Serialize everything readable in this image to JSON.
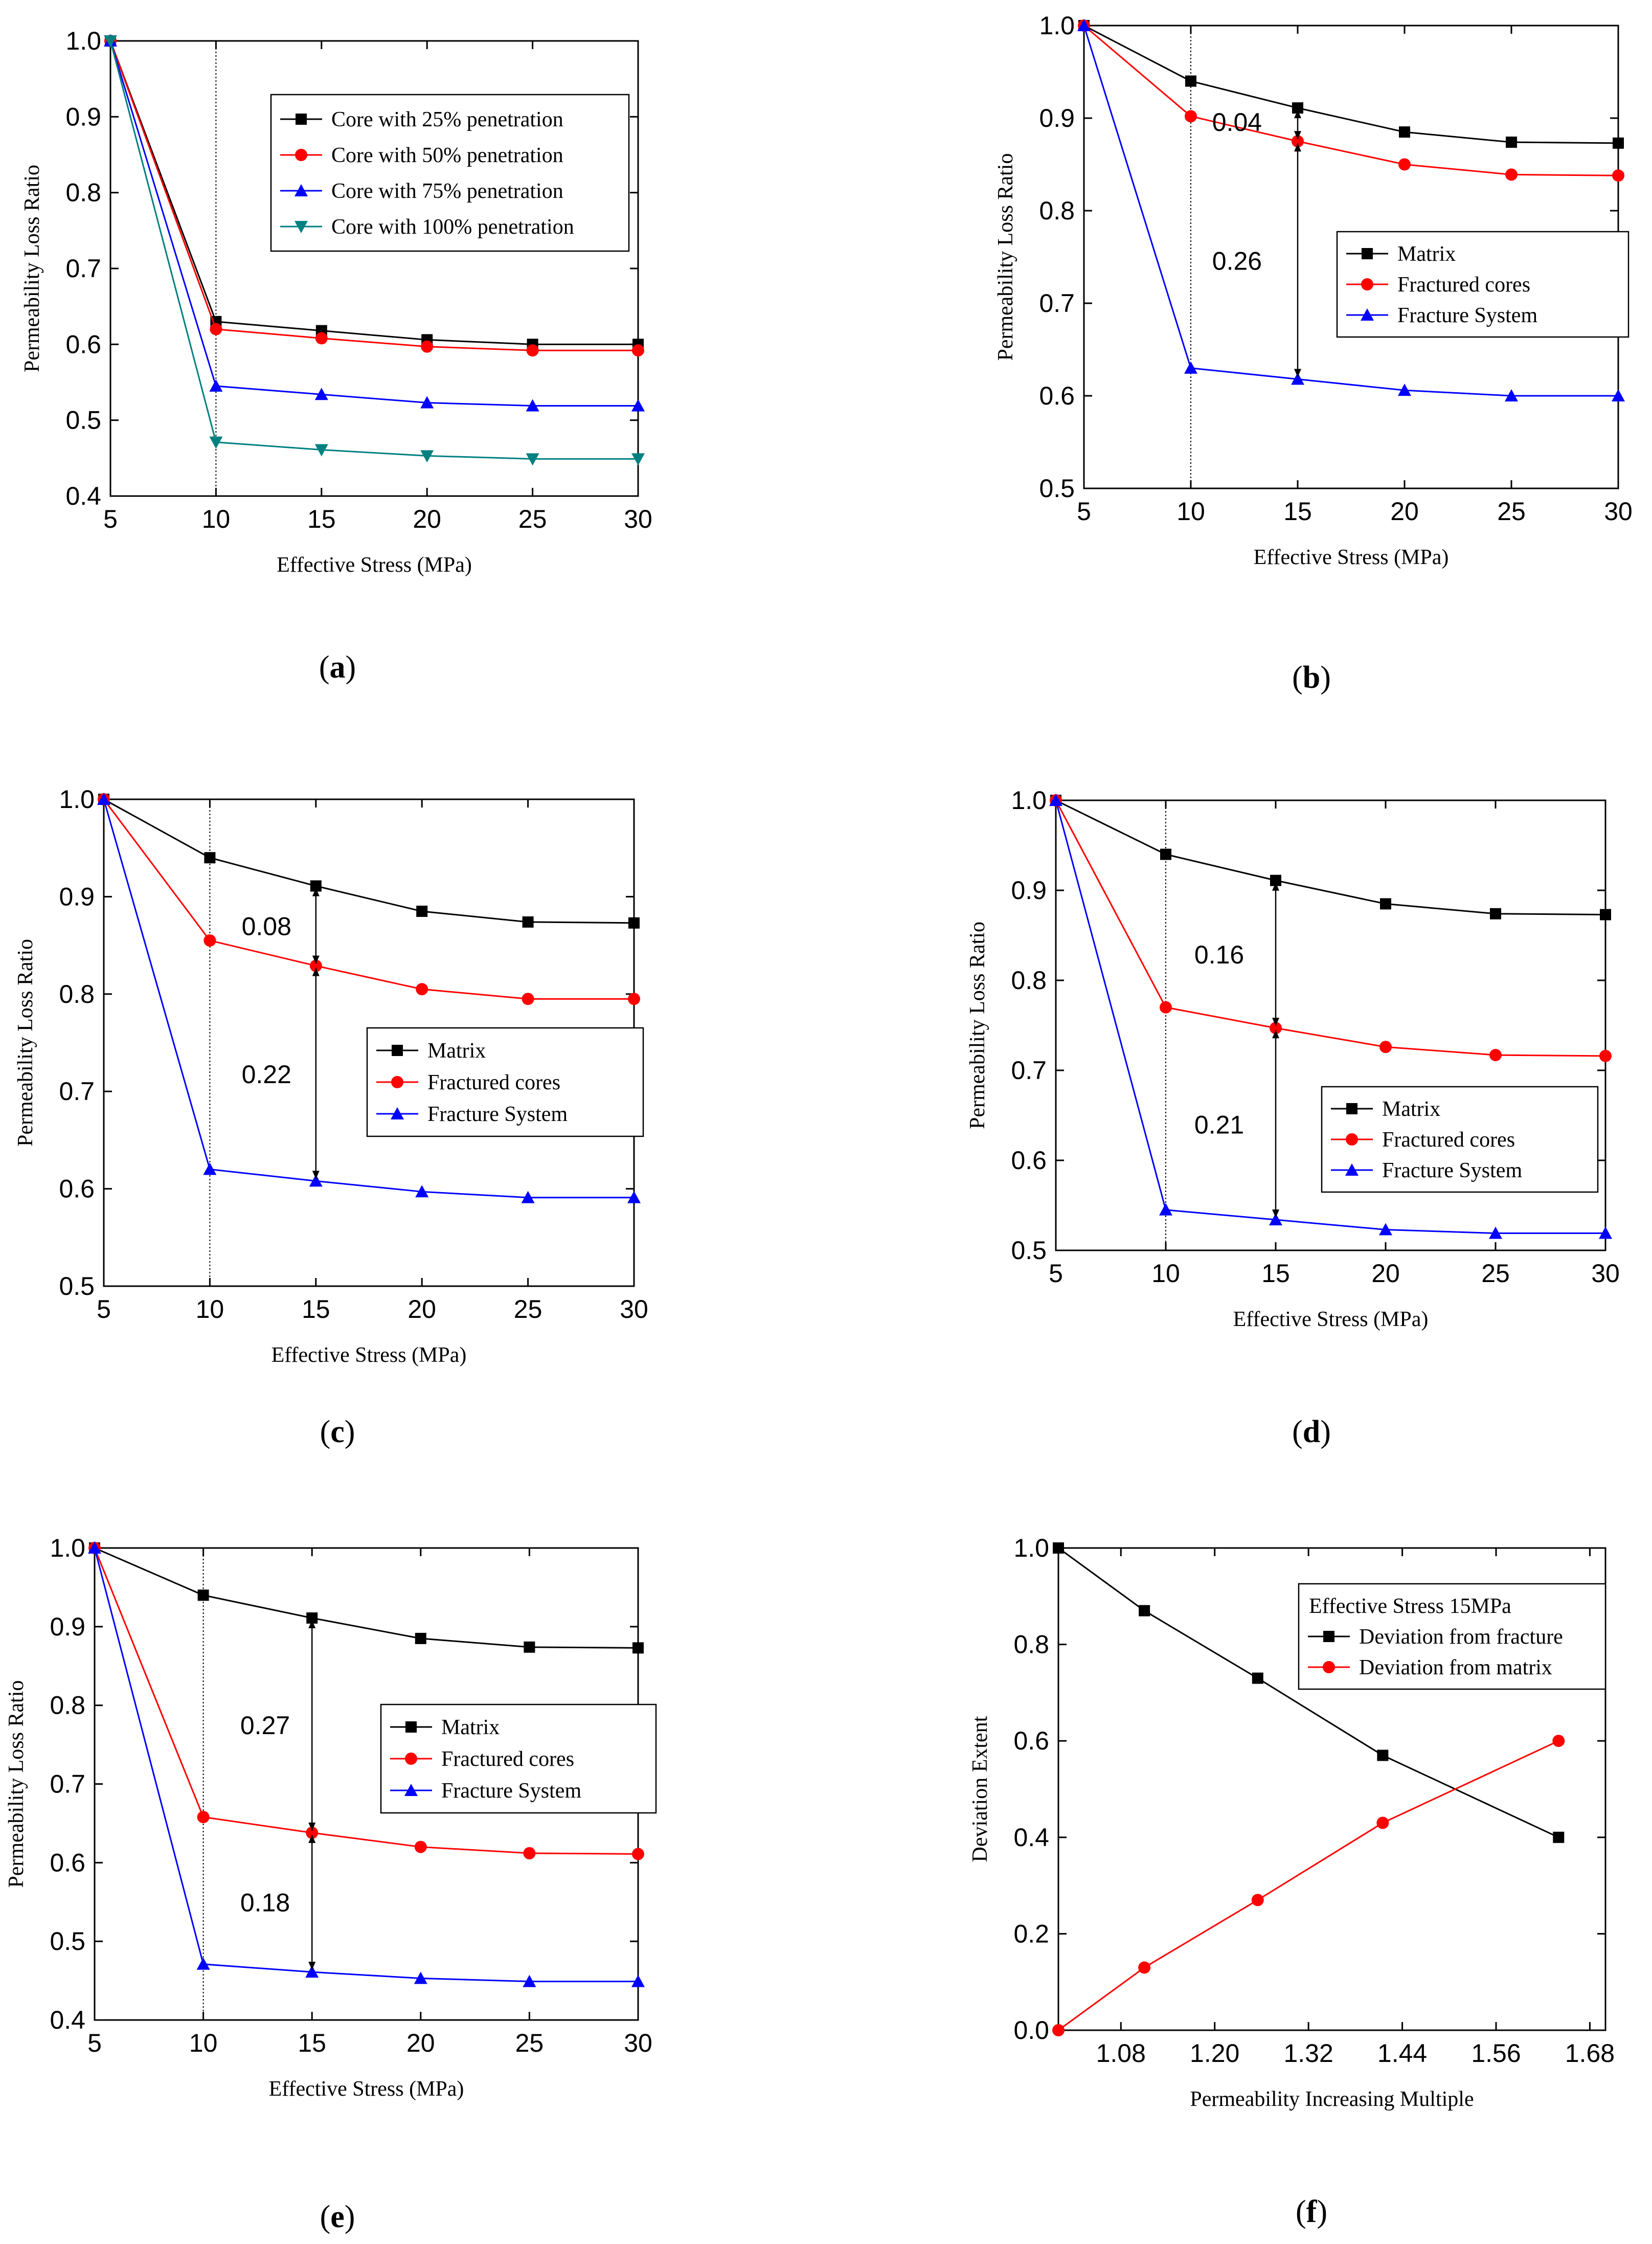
{
  "figure": {
    "panel_labels": [
      "a",
      "b",
      "c",
      "d",
      "e",
      "f"
    ]
  },
  "colors": {
    "black": "#000000",
    "red": "#ff0000",
    "blue": "#0000ff",
    "teal": "#008080"
  },
  "chart_data": [
    {
      "id": "a",
      "type": "line",
      "title": "",
      "xlabel": "Effective Stress (MPa)",
      "ylabel": "Permeability Loss Ratio",
      "x": [
        5,
        10,
        15,
        20,
        25,
        30
      ],
      "xlim": [
        5,
        30
      ],
      "ylim": [
        0.4,
        1.0
      ],
      "xticks": [
        "5",
        "10",
        "15",
        "20",
        "25",
        "30"
      ],
      "yticks": [
        "0.4",
        "0.5",
        "0.6",
        "0.7",
        "0.8",
        "0.9",
        "1.0"
      ],
      "vline": 10,
      "legend_position": "top-right",
      "series": [
        {
          "name": "Core with 25% penetration",
          "values": [
            1.0,
            0.63,
            0.618,
            0.606,
            0.6,
            0.6
          ],
          "color": "#000000",
          "marker": "square"
        },
        {
          "name": "Core with 50% penetration",
          "values": [
            1.0,
            0.62,
            0.608,
            0.597,
            0.592,
            0.592
          ],
          "color": "#ff0000",
          "marker": "circle"
        },
        {
          "name": "Core with 75% penetration",
          "values": [
            1.0,
            0.545,
            0.534,
            0.523,
            0.519,
            0.519
          ],
          "color": "#0000ff",
          "marker": "triangle-up"
        },
        {
          "name": "Core with 100% penetration",
          "values": [
            1.0,
            0.471,
            0.461,
            0.453,
            0.449,
            0.449
          ],
          "color": "#008080",
          "marker": "triangle-down"
        }
      ],
      "annotations": []
    },
    {
      "id": "b",
      "type": "line",
      "title": "",
      "xlabel": "Effective Stress (MPa)",
      "ylabel": "Permeability Loss Ratio",
      "x": [
        5,
        10,
        15,
        20,
        25,
        30
      ],
      "xlim": [
        5,
        30
      ],
      "ylim": [
        0.5,
        1.0
      ],
      "xticks": [
        "5",
        "10",
        "15",
        "20",
        "25",
        "30"
      ],
      "yticks": [
        "0.5",
        "0.6",
        "0.7",
        "0.8",
        "0.9",
        "1.0"
      ],
      "vline": 10,
      "legend_position": "center-right",
      "series": [
        {
          "name": "Matrix",
          "values": [
            1.0,
            0.94,
            0.911,
            0.885,
            0.874,
            0.873
          ],
          "color": "#000000",
          "marker": "square"
        },
        {
          "name": "Fractured cores",
          "values": [
            1.0,
            0.902,
            0.875,
            0.85,
            0.839,
            0.838
          ],
          "color": "#ff0000",
          "marker": "circle"
        },
        {
          "name": "Fracture System",
          "values": [
            1.0,
            0.63,
            0.618,
            0.606,
            0.6,
            0.6
          ],
          "color": "#0000ff",
          "marker": "triangle-up"
        }
      ],
      "annotations": [
        {
          "label": "0.04",
          "at_x": 15,
          "from": 0.911,
          "to": 0.875,
          "label_x": 11.0,
          "label_y": 0.896
        },
        {
          "label": "0.26",
          "at_x": 15,
          "from": 0.875,
          "to": 0.618,
          "label_x": 11.0,
          "label_y": 0.746
        }
      ]
    },
    {
      "id": "c",
      "type": "line",
      "title": "",
      "xlabel": "Effective Stress (MPa)",
      "ylabel": "Permeability Loss Ratio",
      "x": [
        5,
        10,
        15,
        20,
        25,
        30
      ],
      "xlim": [
        5,
        30
      ],
      "ylim": [
        0.5,
        1.0
      ],
      "xticks": [
        "5",
        "10",
        "15",
        "20",
        "25",
        "30"
      ],
      "yticks": [
        "0.5",
        "0.6",
        "0.7",
        "0.8",
        "0.9",
        "1.0"
      ],
      "vline": 10,
      "legend_position": "center-right",
      "series": [
        {
          "name": "Matrix",
          "values": [
            1.0,
            0.94,
            0.911,
            0.885,
            0.874,
            0.873
          ],
          "color": "#000000",
          "marker": "square"
        },
        {
          "name": "Fractured cores",
          "values": [
            1.0,
            0.855,
            0.829,
            0.805,
            0.795,
            0.795
          ],
          "color": "#ff0000",
          "marker": "circle"
        },
        {
          "name": "Fracture System",
          "values": [
            1.0,
            0.62,
            0.608,
            0.597,
            0.591,
            0.591
          ],
          "color": "#0000ff",
          "marker": "triangle-up"
        }
      ],
      "annotations": [
        {
          "label": "0.08",
          "at_x": 15,
          "from": 0.911,
          "to": 0.829,
          "label_x": 11.5,
          "label_y": 0.87
        },
        {
          "label": "0.22",
          "at_x": 15,
          "from": 0.829,
          "to": 0.608,
          "label_x": 11.5,
          "label_y": 0.718
        }
      ]
    },
    {
      "id": "d",
      "type": "line",
      "title": "",
      "xlabel": "Effective Stress (MPa)",
      "ylabel": "Permeability Loss Ratio",
      "x": [
        5,
        10,
        15,
        20,
        25,
        30
      ],
      "xlim": [
        5,
        30
      ],
      "ylim": [
        0.5,
        1.0
      ],
      "xticks": [
        "5",
        "10",
        "15",
        "20",
        "25",
        "30"
      ],
      "yticks": [
        "0.5",
        "0.6",
        "0.7",
        "0.8",
        "0.9",
        "1.0"
      ],
      "vline": 10,
      "legend_position": "lower-right",
      "series": [
        {
          "name": "Matrix",
          "values": [
            1.0,
            0.94,
            0.911,
            0.885,
            0.874,
            0.873
          ],
          "color": "#000000",
          "marker": "square"
        },
        {
          "name": "Fractured cores",
          "values": [
            1.0,
            0.77,
            0.747,
            0.726,
            0.717,
            0.716
          ],
          "color": "#ff0000",
          "marker": "circle"
        },
        {
          "name": "Fracture System",
          "values": [
            1.0,
            0.545,
            0.534,
            0.523,
            0.519,
            0.519
          ],
          "color": "#0000ff",
          "marker": "triangle-up"
        }
      ],
      "annotations": [
        {
          "label": "0.16",
          "at_x": 15,
          "from": 0.911,
          "to": 0.747,
          "label_x": 11.3,
          "label_y": 0.829
        },
        {
          "label": "0.21",
          "at_x": 15,
          "from": 0.747,
          "to": 0.534,
          "label_x": 11.3,
          "label_y": 0.64
        }
      ]
    },
    {
      "id": "e",
      "type": "line",
      "title": "",
      "xlabel": "Effective Stress (MPa)",
      "ylabel": "Permeability Loss Ratio",
      "x": [
        5,
        10,
        15,
        20,
        25,
        30
      ],
      "xlim": [
        5,
        30
      ],
      "ylim": [
        0.4,
        1.0
      ],
      "xticks": [
        "5",
        "10",
        "15",
        "20",
        "25",
        "30"
      ],
      "yticks": [
        "0.4",
        "0.5",
        "0.6",
        "0.7",
        "0.8",
        "0.9",
        "1.0"
      ],
      "vline": 10,
      "legend_position": "center-right",
      "series": [
        {
          "name": "Matrix",
          "values": [
            1.0,
            0.94,
            0.911,
            0.885,
            0.874,
            0.873
          ],
          "color": "#000000",
          "marker": "square"
        },
        {
          "name": "Fractured cores",
          "values": [
            1.0,
            0.658,
            0.638,
            0.62,
            0.612,
            0.611
          ],
          "color": "#ff0000",
          "marker": "circle"
        },
        {
          "name": "Fracture System",
          "values": [
            1.0,
            0.471,
            0.461,
            0.453,
            0.449,
            0.449
          ],
          "color": "#0000ff",
          "marker": "triangle-up"
        }
      ],
      "annotations": [
        {
          "label": "0.27",
          "at_x": 15,
          "from": 0.911,
          "to": 0.638,
          "label_x": 11.7,
          "label_y": 0.775
        },
        {
          "label": "0.18",
          "at_x": 15,
          "from": 0.638,
          "to": 0.461,
          "label_x": 11.7,
          "label_y": 0.55
        }
      ]
    },
    {
      "id": "f",
      "type": "line",
      "title": "",
      "xlabel": "Permeability Increasing Multiple",
      "ylabel": "Deviation Extent",
      "x": [
        1.0,
        1.11,
        1.255,
        1.415,
        1.64
      ],
      "xlim": [
        1.0,
        1.7
      ],
      "ylim": [
        0.0,
        1.0
      ],
      "xtick_values": [
        1.08,
        1.2,
        1.32,
        1.44,
        1.56,
        1.68
      ],
      "xticks": [
        "1.08",
        "1.20",
        "1.32",
        "1.44",
        "1.56",
        "1.68"
      ],
      "yticks": [
        "0.0",
        "0.2",
        "0.4",
        "0.6",
        "0.8",
        "1.0"
      ],
      "vline": null,
      "legend_position": "top-right",
      "legend_title": "Effective Stress    15MPa",
      "series": [
        {
          "name": "Deviation from fracture",
          "values": [
            1.0,
            0.87,
            0.73,
            0.57,
            0.4
          ],
          "color": "#000000",
          "marker": "square"
        },
        {
          "name": "Deviation from matrix",
          "values": [
            0.0,
            0.13,
            0.27,
            0.43,
            0.6
          ],
          "color": "#ff0000",
          "marker": "circle"
        }
      ],
      "annotations": []
    }
  ]
}
